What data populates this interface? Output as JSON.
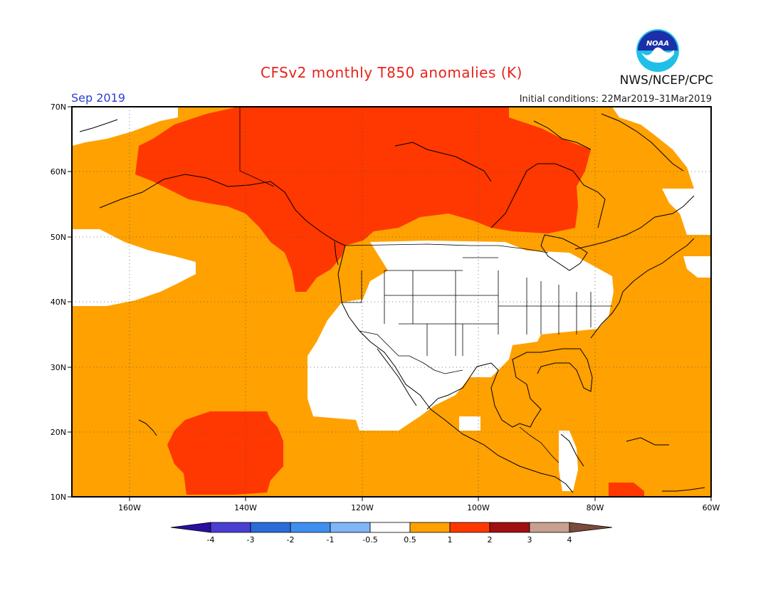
{
  "title": "CFSv2 monthly T850 anomalies (K)",
  "month": "Sep 2019",
  "initial_conditions": "Initial conditions: 22Mar2019–31Mar2019",
  "agency": "NWS/NCEP/CPC",
  "logo_text": "NOAA",
  "lat_labels": [
    "70N",
    "60N",
    "50N",
    "40N",
    "30N",
    "20N",
    "10N"
  ],
  "lon_labels": [
    "160W",
    "140W",
    "120W",
    "100W",
    "80W",
    "60W"
  ],
  "colorbar": {
    "labels": [
      "-4",
      "-3",
      "-2",
      "-1",
      "-0.5",
      "0.5",
      "1",
      "2",
      "3",
      "4"
    ],
    "colors": [
      "#2a0f9e",
      "#4a3fd2",
      "#2a6cd8",
      "#3f8ff0",
      "#7fb6f5",
      "#ffffff",
      "#ffa100",
      "#ff3700",
      "#a00f12",
      "#c8a090",
      "#7a4a3e"
    ]
  },
  "colors": {
    "orange": "#ffa100",
    "red": "#ff3700",
    "white": "#ffffff",
    "title": "#e8231a",
    "month": "#2a3fd6"
  }
}
